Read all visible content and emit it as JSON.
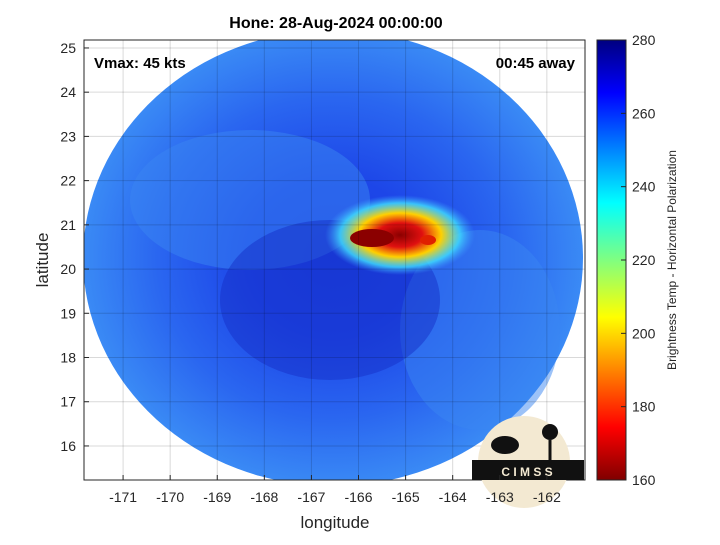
{
  "chart_data": {
    "type": "image",
    "title": "Hone: 28-Aug-2024 00:00:00",
    "xlabel": "longitude",
    "ylabel": "latitude",
    "annotations": [
      "Vmax: 45 kts",
      "00:45 away"
    ],
    "logo": "C I M S S",
    "xlim": [
      -171.83,
      -161.19
    ],
    "xticks": [
      -171,
      -170,
      -169,
      -168,
      -167,
      -166,
      -165,
      -164,
      -163,
      -162
    ],
    "ylim": [
      15.23,
      25.18
    ],
    "yticks": [
      16,
      17,
      18,
      19,
      20,
      21,
      22,
      23,
      24,
      25
    ],
    "grid": true,
    "colorbar": {
      "label": "Brightness Temp - Horizontal Polarization",
      "lim": [
        160,
        280
      ],
      "ticks": [
        160,
        180,
        200,
        220,
        240,
        260,
        280
      ],
      "colormap": "jet"
    }
  }
}
